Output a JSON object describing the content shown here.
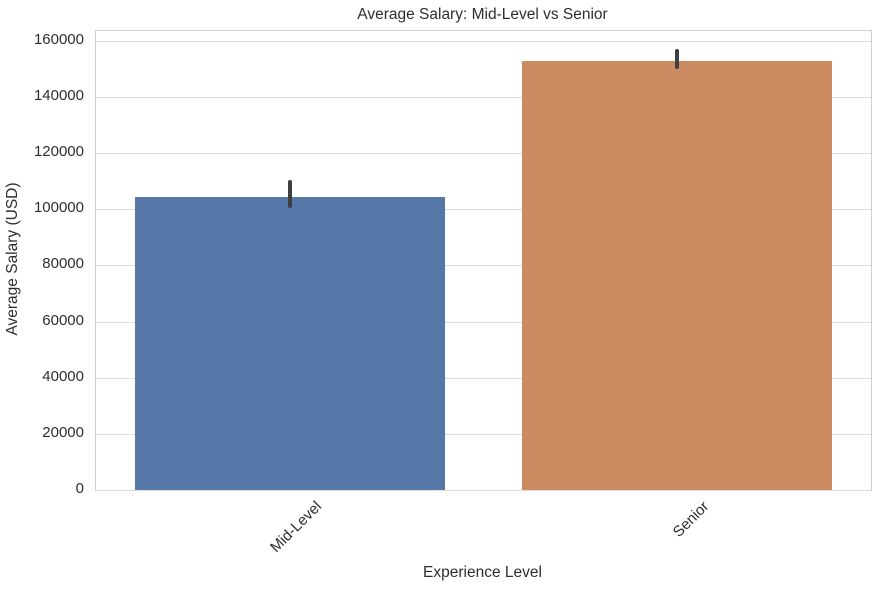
{
  "chart_data": {
    "type": "bar",
    "title": "Average Salary: Mid-Level vs Senior",
    "xlabel": "Experience Level",
    "ylabel": "Average Salary (USD)",
    "categories": [
      "Mid-Level",
      "Senior"
    ],
    "values": [
      104500,
      152900
    ],
    "error_bars": [
      {
        "low": 100600,
        "high": 110600
      },
      {
        "low": 150000,
        "high": 157100
      }
    ],
    "bar_colors": [
      "#5578a8",
      "#cc8a60"
    ],
    "error_bar_color": "#3f3f3f",
    "yticks": [
      0,
      20000,
      40000,
      60000,
      80000,
      100000,
      120000,
      140000,
      160000
    ],
    "ylim": [
      0,
      163500
    ],
    "bar_width_fraction": 0.8,
    "xtick_rotation_deg": 45,
    "grid": "horizontal",
    "gridline_color": "#dcdcdc",
    "spine_color": "#cfcfcf",
    "background_color": "#ffffff",
    "text_color": "#2e2e2e",
    "legend": "none"
  }
}
